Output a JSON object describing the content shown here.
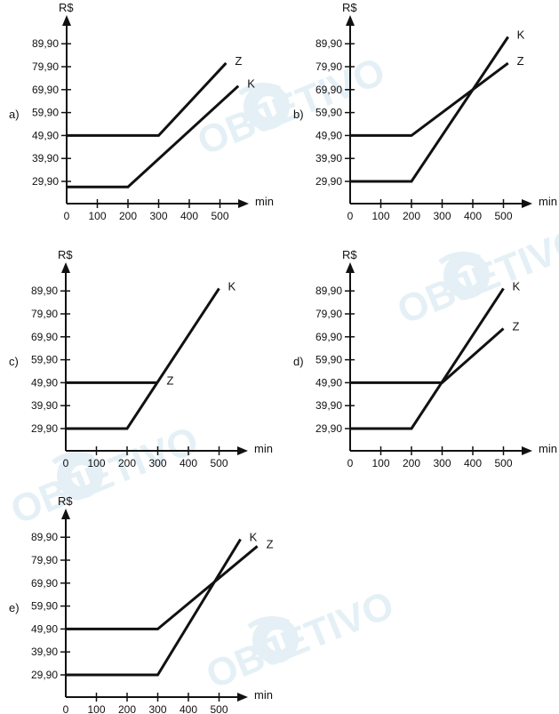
{
  "watermark": {
    "text": "OBJETIVO",
    "color": "#cfe4ef"
  },
  "chart_data": [
    {
      "type": "line",
      "option": "a)",
      "ylabel": "R$",
      "xlabel": "min",
      "x_ticks": [
        "0",
        "100",
        "200",
        "300",
        "400",
        "500"
      ],
      "y_ticks": [
        "29,90",
        "39,90",
        "49,90",
        "59,90",
        "69,90",
        "79,90",
        "89,90"
      ],
      "xlim": [
        0,
        500
      ],
      "ylim": [
        29.9,
        89.9
      ],
      "grid": false,
      "series": [
        {
          "name": "Z",
          "points": [
            [
              0,
              49.9
            ],
            [
              300,
              49.9
            ],
            [
              520,
              81.5
            ]
          ]
        },
        {
          "name": "K",
          "points": [
            [
              0,
              27.5
            ],
            [
              200,
              27.5
            ],
            [
              560,
              71.5
            ]
          ]
        }
      ]
    },
    {
      "type": "line",
      "option": "b)",
      "ylabel": "R$",
      "xlabel": "min",
      "x_ticks": [
        "0",
        "100",
        "200",
        "300",
        "400",
        "500"
      ],
      "y_ticks": [
        "29,90",
        "39,90",
        "49,90",
        "59,90",
        "69,90",
        "79,90",
        "89,90"
      ],
      "xlim": [
        0,
        500
      ],
      "ylim": [
        29.9,
        89.9
      ],
      "grid": false,
      "series": [
        {
          "name": "K",
          "points": [
            [
              0,
              29.9
            ],
            [
              200,
              29.9
            ],
            [
              515,
              92.9
            ]
          ]
        },
        {
          "name": "Z",
          "points": [
            [
              0,
              49.9
            ],
            [
              200,
              49.9
            ],
            [
              515,
              81.4
            ]
          ]
        }
      ]
    },
    {
      "type": "line",
      "option": "c)",
      "ylabel": "R$",
      "xlabel": "min",
      "x_ticks": [
        "0",
        "100",
        "200",
        "300",
        "400",
        "500"
      ],
      "y_ticks": [
        "29,90",
        "39,90",
        "49,90",
        "59,90",
        "69,90",
        "79,90",
        "89,90"
      ],
      "xlim": [
        0,
        500
      ],
      "ylim": [
        29.9,
        89.9
      ],
      "grid": false,
      "series": [
        {
          "name": "Z",
          "points": [
            [
              0,
              49.9
            ],
            [
              300,
              49.9
            ]
          ]
        },
        {
          "name": "K",
          "points": [
            [
              0,
              29.9
            ],
            [
              200,
              29.9
            ],
            [
              500,
              91.0
            ]
          ]
        }
      ]
    },
    {
      "type": "line",
      "option": "d)",
      "ylabel": "R$",
      "xlabel": "min",
      "x_ticks": [
        "0",
        "100",
        "200",
        "300",
        "400",
        "500"
      ],
      "y_ticks": [
        "29,90",
        "39,90",
        "49,90",
        "59,90",
        "69,90",
        "79,90",
        "89,90"
      ],
      "xlim": [
        0,
        500
      ],
      "ylim": [
        29.9,
        89.9
      ],
      "grid": false,
      "series": [
        {
          "name": "K",
          "points": [
            [
              0,
              29.9
            ],
            [
              200,
              29.9
            ],
            [
              500,
              91.0
            ]
          ]
        },
        {
          "name": "Z",
          "points": [
            [
              0,
              49.9
            ],
            [
              300,
              49.9
            ],
            [
              500,
              73.5
            ]
          ]
        }
      ]
    },
    {
      "type": "line",
      "option": "e)",
      "ylabel": "R$",
      "xlabel": "min",
      "x_ticks": [
        "0",
        "100",
        "200",
        "300",
        "400",
        "500"
      ],
      "y_ticks": [
        "29,90",
        "39,90",
        "49,90",
        "59,90",
        "69,90",
        "79,90",
        "89,90"
      ],
      "xlim": [
        0,
        500
      ],
      "ylim": [
        29.9,
        89.9
      ],
      "grid": false,
      "series": [
        {
          "name": "K",
          "points": [
            [
              0,
              29.9
            ],
            [
              300,
              29.9
            ],
            [
              570,
              89.0
            ]
          ]
        },
        {
          "name": "Z",
          "points": [
            [
              0,
              49.9
            ],
            [
              300,
              49.9
            ],
            [
              625,
              86.0
            ]
          ]
        }
      ]
    }
  ]
}
